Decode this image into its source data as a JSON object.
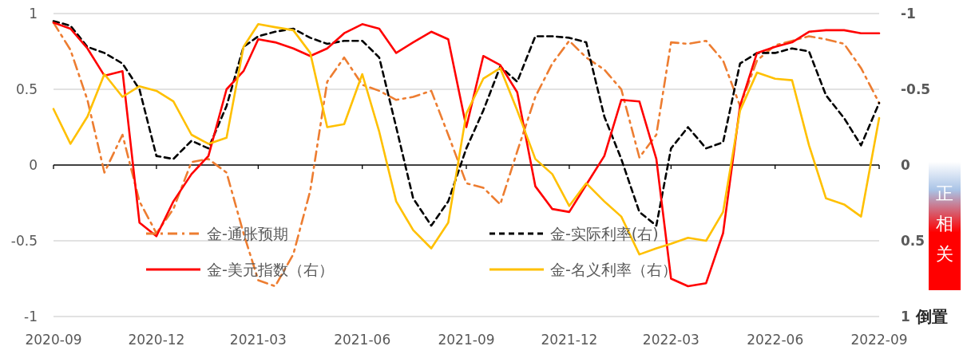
{
  "chart_data": {
    "type": "line",
    "x": [
      "2020-09-01",
      "2020-09-16",
      "2020-10-01",
      "2020-10-16",
      "2020-11-01",
      "2020-11-16",
      "2020-12-01",
      "2020-12-16",
      "2021-01-01",
      "2021-01-16",
      "2021-02-01",
      "2021-02-16",
      "2021-03-01",
      "2021-03-16",
      "2021-04-01",
      "2021-04-16",
      "2021-05-01",
      "2021-05-16",
      "2021-06-01",
      "2021-06-16",
      "2021-07-01",
      "2021-07-16",
      "2021-08-01",
      "2021-08-16",
      "2021-09-01",
      "2021-09-16",
      "2021-10-01",
      "2021-10-16",
      "2021-11-01",
      "2021-11-16",
      "2021-12-01",
      "2021-12-16",
      "2022-01-01",
      "2022-01-16",
      "2022-02-01",
      "2022-02-16",
      "2022-03-01",
      "2022-03-16",
      "2022-04-01",
      "2022-04-16",
      "2022-05-01",
      "2022-05-16",
      "2022-06-01",
      "2022-06-16",
      "2022-07-01",
      "2022-07-16",
      "2022-08-01",
      "2022-08-16",
      "2022-09-01"
    ],
    "series": [
      {
        "name": "金-通胀预期",
        "color": "#ed7d31",
        "line_style": "dashdot",
        "values": [
          0.94,
          0.76,
          0.43,
          -0.05,
          0.2,
          -0.24,
          -0.45,
          -0.29,
          0.02,
          0.04,
          -0.05,
          -0.45,
          -0.76,
          -0.8,
          -0.59,
          -0.17,
          0.55,
          0.71,
          0.53,
          0.49,
          0.43,
          0.45,
          0.49,
          0.2,
          -0.12,
          -0.15,
          -0.26,
          0.09,
          0.45,
          0.67,
          0.82,
          0.71,
          0.63,
          0.5,
          0.05,
          0.2,
          0.81,
          0.8,
          0.82,
          0.69,
          0.39,
          0.69,
          0.79,
          0.82,
          0.85,
          0.83,
          0.8,
          0.64,
          0.41
        ]
      },
      {
        "name": "金-实际利率(右)",
        "color": "#000000",
        "line_style": "dashed",
        "axis": "y2",
        "values": [
          -0.95,
          -0.92,
          -0.78,
          -0.74,
          -0.67,
          -0.5,
          -0.06,
          -0.04,
          -0.16,
          -0.11,
          -0.39,
          -0.78,
          -0.85,
          -0.88,
          -0.9,
          -0.84,
          -0.8,
          -0.82,
          -0.82,
          -0.71,
          -0.25,
          0.22,
          0.4,
          0.24,
          -0.11,
          -0.36,
          -0.65,
          -0.55,
          -0.85,
          -0.85,
          -0.84,
          -0.81,
          -0.32,
          -0.04,
          0.31,
          0.4,
          -0.11,
          -0.25,
          -0.11,
          -0.15,
          -0.67,
          -0.74,
          -0.74,
          -0.77,
          -0.75,
          -0.46,
          -0.31,
          -0.13,
          -0.41
        ]
      },
      {
        "name": "金-美元指数（右）",
        "color": "#ff0000",
        "line_style": "solid",
        "axis": "y2",
        "values": [
          -0.94,
          -0.9,
          -0.77,
          -0.59,
          -0.62,
          0.38,
          0.47,
          0.24,
          0.06,
          -0.06,
          -0.5,
          -0.62,
          -0.83,
          -0.81,
          -0.77,
          -0.72,
          -0.77,
          -0.87,
          -0.93,
          -0.9,
          -0.74,
          -0.81,
          -0.88,
          -0.83,
          -0.25,
          -0.72,
          -0.66,
          -0.48,
          0.14,
          0.29,
          0.31,
          0.13,
          -0.06,
          -0.43,
          -0.42,
          -0.04,
          0.75,
          0.8,
          0.78,
          0.45,
          -0.39,
          -0.74,
          -0.78,
          -0.81,
          -0.88,
          -0.89,
          -0.89,
          -0.87,
          -0.87
        ]
      },
      {
        "name": "金-名义利率（右）",
        "color": "#ffc000",
        "line_style": "solid",
        "axis": "y2",
        "values": [
          -0.37,
          -0.14,
          -0.32,
          -0.6,
          -0.45,
          -0.52,
          -0.49,
          -0.42,
          -0.2,
          -0.14,
          -0.18,
          -0.78,
          -0.93,
          -0.91,
          -0.89,
          -0.74,
          -0.25,
          -0.27,
          -0.6,
          -0.22,
          0.24,
          0.43,
          0.55,
          0.38,
          -0.34,
          -0.57,
          -0.64,
          -0.36,
          -0.04,
          0.06,
          0.27,
          0.12,
          0.24,
          0.34,
          0.59,
          0.55,
          0.52,
          0.48,
          0.5,
          0.31,
          -0.36,
          -0.61,
          -0.57,
          -0.56,
          -0.13,
          0.22,
          0.26,
          0.34,
          -0.31
        ]
      }
    ],
    "xlim": [
      "2020-09",
      "2022-09"
    ],
    "xticks": [
      "2020-09",
      "2020-12",
      "2021-03",
      "2021-06",
      "2021-09",
      "2021-12",
      "2022-03",
      "2022-06",
      "2022-09"
    ],
    "ylim": [
      -1,
      1
    ],
    "yticks": [
      -1,
      -0.5,
      0,
      0.5,
      1
    ],
    "y2lim": [
      1,
      -1
    ],
    "y2ticks": [
      -1,
      -0.5,
      0,
      0.5,
      1
    ],
    "grid": "y",
    "legend": "bottom",
    "annotations": [
      "倒置",
      "正相关"
    ]
  }
}
